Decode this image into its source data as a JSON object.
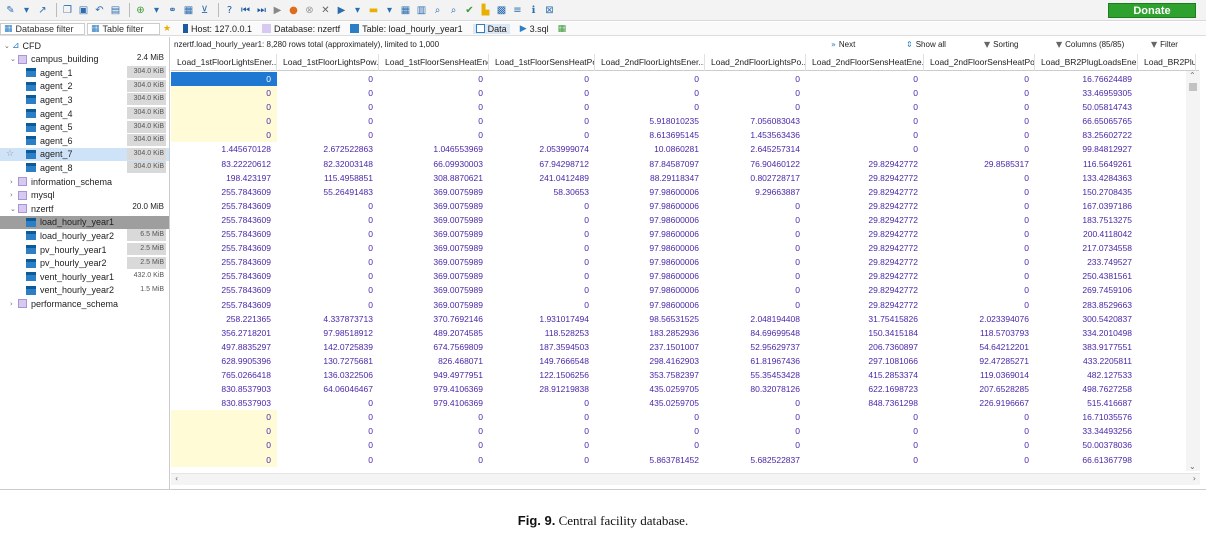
{
  "toolbar": {
    "icons": [
      "edit-icon",
      "dropdown-icon",
      "arrow-icon",
      "separator",
      "copy-icon",
      "save-icon",
      "undo-icon",
      "print-icon",
      "separator",
      "add-icon",
      "dropdown-icon",
      "link-icon",
      "table-icon",
      "filter-icon",
      "separator",
      "help-icon",
      "first-icon",
      "last-icon",
      "play-icon",
      "stop-icon",
      "cancel-icon",
      "close-icon",
      "run-icon",
      "dropdown-icon",
      "folder-icon",
      "dropdown-icon",
      "grid-icon",
      "grid2-icon",
      "search-icon",
      "search2-icon",
      "check-icon",
      "chart-icon",
      "binary-icon",
      "text-icon",
      "info-icon",
      "maximize-icon"
    ],
    "donate_label": "Donate",
    "donate_color": "#2ea12e"
  },
  "filters": {
    "database_filter": "Database filter",
    "table_filter": "Table filter"
  },
  "tabs": [
    {
      "label": "Host: 127.0.0.1"
    },
    {
      "label": "Database: nzertf"
    },
    {
      "label": "Table: load_hourly_year1"
    },
    {
      "label": "Data"
    },
    {
      "label": "3.sql"
    }
  ],
  "tree": {
    "root": "CFD",
    "campus": {
      "label": "campus_building",
      "size": "2.4 MiB"
    },
    "agents": [
      {
        "label": "agent_1",
        "size": "304.0 KiB"
      },
      {
        "label": "agent_2",
        "size": "304.0 KiB"
      },
      {
        "label": "agent_3",
        "size": "304.0 KiB"
      },
      {
        "label": "agent_4",
        "size": "304.0 KiB"
      },
      {
        "label": "agent_5",
        "size": "304.0 KiB"
      },
      {
        "label": "agent_6",
        "size": "304.0 KiB"
      },
      {
        "label": "agent_7",
        "size": "304.0 KiB"
      },
      {
        "label": "agent_8",
        "size": "304.0 KiB"
      }
    ],
    "info": "information_schema",
    "mysql": "mysql",
    "nzertf": {
      "label": "nzertf",
      "size": "20.0 MiB"
    },
    "nz_tables": [
      {
        "label": "load_hourly_year1",
        "size": ""
      },
      {
        "label": "load_hourly_year2",
        "size": "6.5 MiB"
      },
      {
        "label": "pv_hourly_year1",
        "size": "2.5 MiB"
      },
      {
        "label": "pv_hourly_year2",
        "size": "2.5 MiB"
      },
      {
        "label": "vent_hourly_year1",
        "size": "432.0 KiB"
      },
      {
        "label": "vent_hourly_year2",
        "size": "1.5 MiB"
      }
    ],
    "perf": "performance_schema"
  },
  "grid": {
    "status": "nzertf.load_hourly_year1: 8,280 rows total (approximately), limited to 1,000",
    "next": "Next",
    "show_all": "Show all",
    "sorting": "Sorting",
    "columns": "Columns (85/85)",
    "filter": "Filter",
    "headers": [
      "Load_1stFloorLightsEner...",
      "Load_1stFloorLightsPow...",
      "Load_1stFloorSensHeatEne...",
      "Load_1stFloorSensHeatPo...",
      "Load_2ndFloorLightsEner...",
      "Load_2ndFloorLightsPo...",
      "Load_2ndFloorSensHeatEne...",
      "Load_2ndFloorSensHeatPo...",
      "Load_BR2PlugLoadsEner...",
      "Load_BR2Plug"
    ],
    "rows": [
      [
        "0",
        "0",
        "0",
        "0",
        "0",
        "0",
        "0",
        "0",
        "16.76624489"
      ],
      [
        "0",
        "0",
        "0",
        "0",
        "0",
        "0",
        "0",
        "0",
        "33.46959305"
      ],
      [
        "0",
        "0",
        "0",
        "0",
        "0",
        "0",
        "0",
        "0",
        "50.05814743"
      ],
      [
        "0",
        "0",
        "0",
        "0",
        "5.918010235",
        "7.056083043",
        "0",
        "0",
        "66.65065765"
      ],
      [
        "0",
        "0",
        "0",
        "0",
        "8.613695145",
        "1.453563436",
        "0",
        "0",
        "83.25602722"
      ],
      [
        "1.445670128",
        "2.672522863",
        "1.046553969",
        "2.053999074",
        "10.0860281",
        "2.645257314",
        "0",
        "0",
        "99.84812927"
      ],
      [
        "83.22220612",
        "82.32003148",
        "66.09930003",
        "67.94298712",
        "87.84587097",
        "76.90460122",
        "29.82942772",
        "29.8585317",
        "116.5649261"
      ],
      [
        "198.423197",
        "115.4958851",
        "308.8870621",
        "241.0412489",
        "88.29118347",
        "0.802728717",
        "29.82942772",
        "0",
        "133.4284363"
      ],
      [
        "255.7843609",
        "55.26491483",
        "369.0075989",
        "58.30653",
        "97.98600006",
        "9.29663887",
        "29.82942772",
        "0",
        "150.2708435"
      ],
      [
        "255.7843609",
        "0",
        "369.0075989",
        "0",
        "97.98600006",
        "0",
        "29.82942772",
        "0",
        "167.0397186"
      ],
      [
        "255.7843609",
        "0",
        "369.0075989",
        "0",
        "97.98600006",
        "0",
        "29.82942772",
        "0",
        "183.7513275"
      ],
      [
        "255.7843609",
        "0",
        "369.0075989",
        "0",
        "97.98600006",
        "0",
        "29.82942772",
        "0",
        "200.4118042"
      ],
      [
        "255.7843609",
        "0",
        "369.0075989",
        "0",
        "97.98600006",
        "0",
        "29.82942772",
        "0",
        "217.0734558"
      ],
      [
        "255.7843609",
        "0",
        "369.0075989",
        "0",
        "97.98600006",
        "0",
        "29.82942772",
        "0",
        "233.749527"
      ],
      [
        "255.7843609",
        "0",
        "369.0075989",
        "0",
        "97.98600006",
        "0",
        "29.82942772",
        "0",
        "250.4381561"
      ],
      [
        "255.7843609",
        "0",
        "369.0075989",
        "0",
        "97.98600006",
        "0",
        "29.82942772",
        "0",
        "269.7459106"
      ],
      [
        "255.7843609",
        "0",
        "369.0075989",
        "0",
        "97.98600006",
        "0",
        "29.82942772",
        "0",
        "283.8529663"
      ],
      [
        "258.221365",
        "4.337873713",
        "370.7692146",
        "1.931017494",
        "98.56531525",
        "2.048194408",
        "31.75415826",
        "2.023394076",
        "300.5420837"
      ],
      [
        "356.2718201",
        "97.98518912",
        "489.2074585",
        "118.528253",
        "183.2852936",
        "84.69699548",
        "150.3415184",
        "118.5703793",
        "334.2010498"
      ],
      [
        "497.8835297",
        "142.0725839",
        "674.7569809",
        "187.3594503",
        "237.1501007",
        "52.95629737",
        "206.7360897",
        "54.64212201",
        "383.9177551"
      ],
      [
        "628.9905396",
        "130.7275681",
        "826.468071",
        "149.7666548",
        "298.4162903",
        "61.81967436",
        "297.1081066",
        "92.47285271",
        "433.2205811"
      ],
      [
        "765.0266418",
        "136.0322506",
        "949.4977951",
        "122.1506256",
        "353.7582397",
        "55.35453428",
        "415.2853374",
        "119.0369014",
        "482.127533"
      ],
      [
        "830.8537903",
        "64.06046467",
        "979.4106369",
        "28.91219838",
        "435.0259705",
        "80.32078126",
        "622.1698723",
        "207.6528285",
        "498.7627258"
      ],
      [
        "830.8537903",
        "0",
        "979.4106369",
        "0",
        "435.0259705",
        "0",
        "848.7361298",
        "226.9196667",
        "515.416687"
      ],
      [
        "0",
        "0",
        "0",
        "0",
        "0",
        "0",
        "0",
        "0",
        "16.71035576"
      ],
      [
        "0",
        "0",
        "0",
        "0",
        "0",
        "0",
        "0",
        "0",
        "33.34493256"
      ],
      [
        "0",
        "0",
        "0",
        "0",
        "0",
        "0",
        "0",
        "0",
        "50.00378036"
      ],
      [
        "0",
        "0",
        "0",
        "0",
        "5.863781452",
        "5.682522837",
        "0",
        "0",
        "66.61367798"
      ]
    ]
  },
  "caption": {
    "label": "Fig. 9.",
    "text": "Central facility database."
  }
}
